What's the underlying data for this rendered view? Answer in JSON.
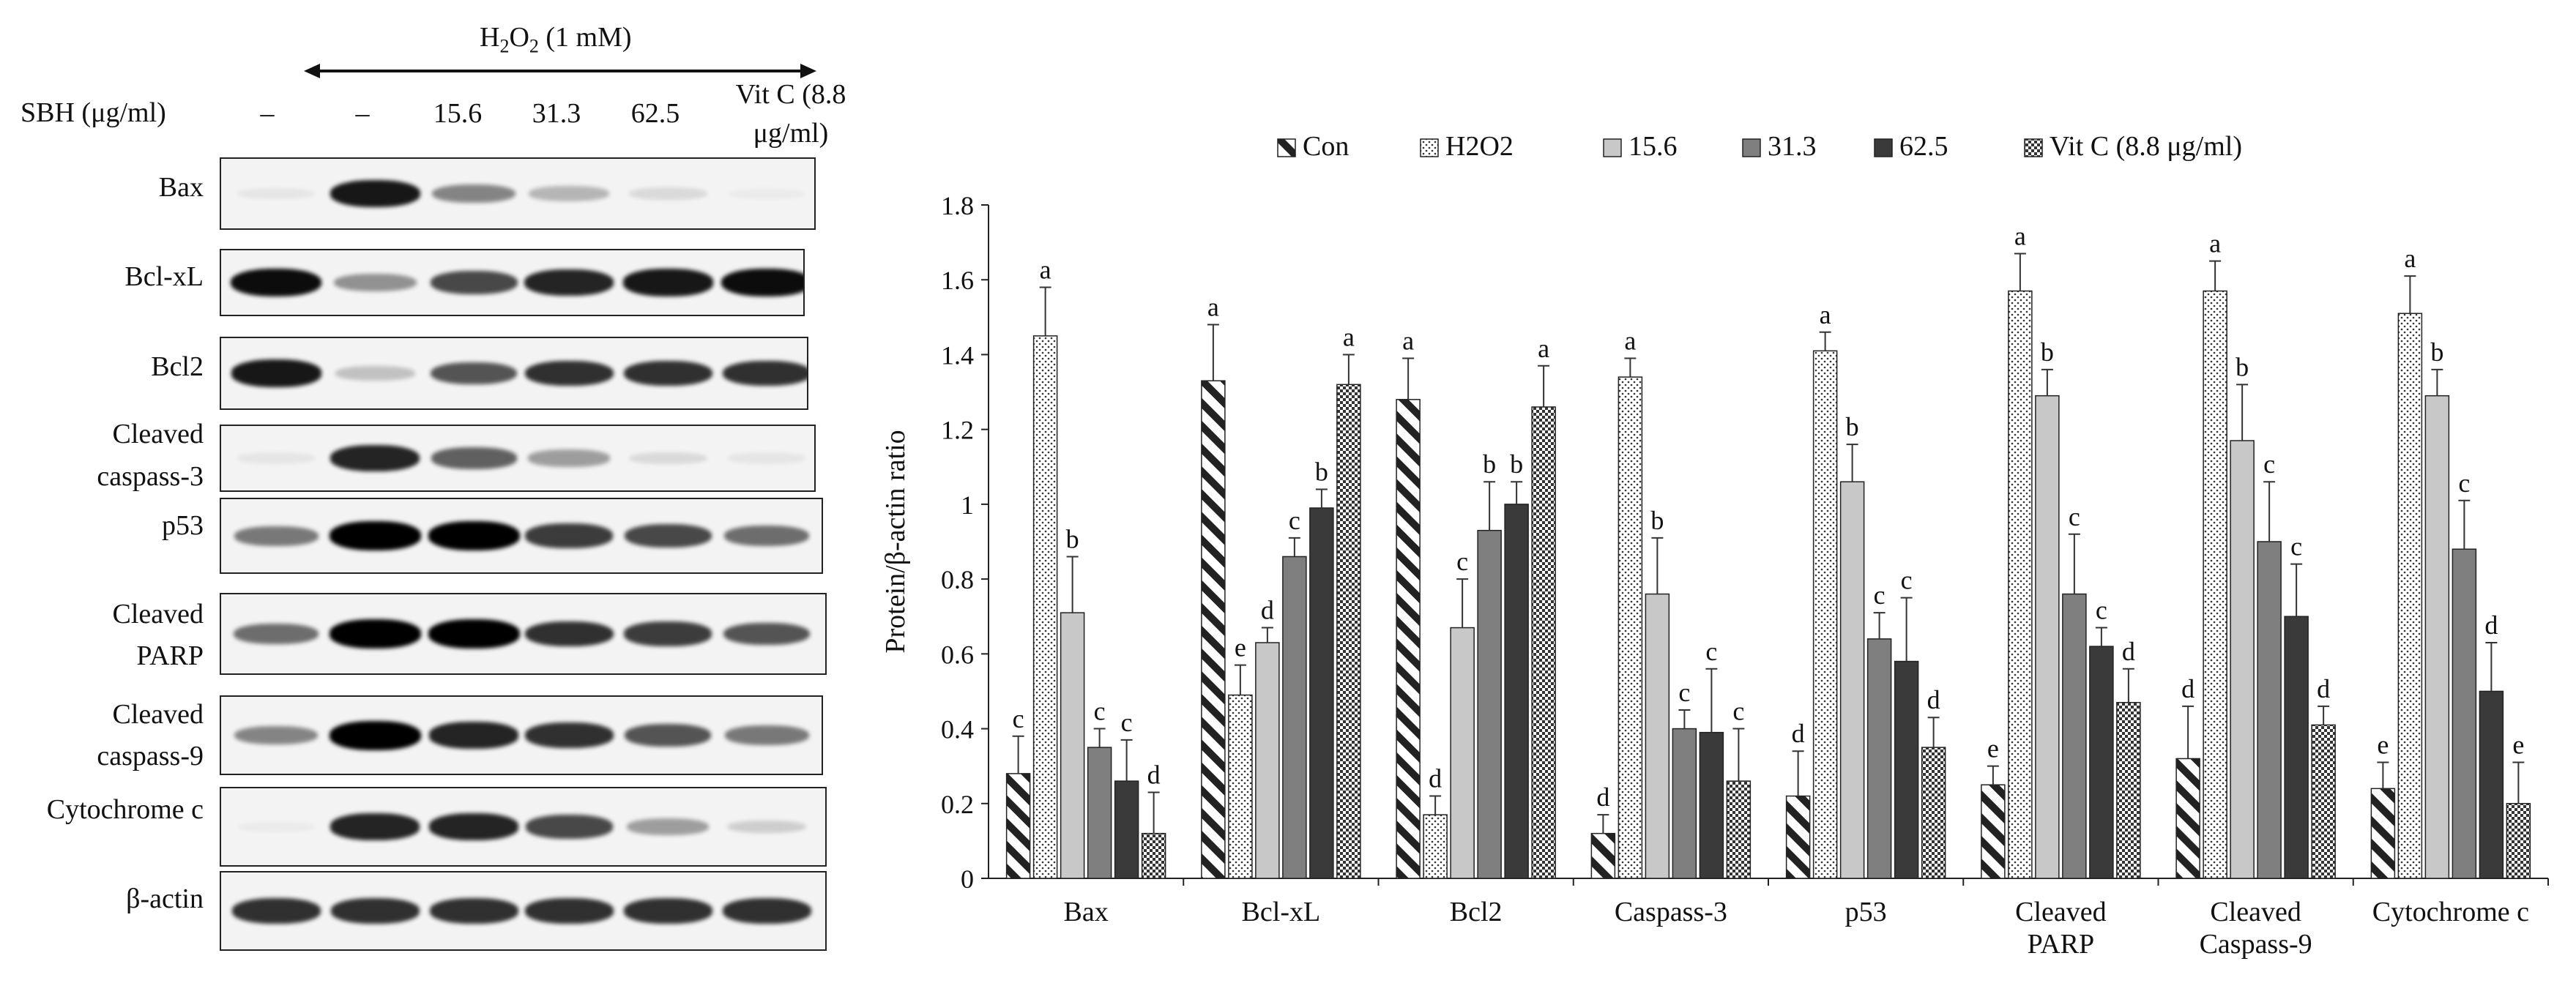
{
  "blot": {
    "treatment_label": "H2O2 (1 mM)",
    "treatment_main": "H",
    "treatment_sub2": "2",
    "treatment_o": "O",
    "treatment_sub2b": "2",
    "treatment_conc": " (1 mM)",
    "sbh_label": "SBH (μg/ml)",
    "lanes": [
      "–",
      "–",
      "15.6",
      "31.3",
      "62.5",
      "Vit C (8.8",
      "μg/ml)"
    ],
    "rows": [
      {
        "label": "Bax",
        "intensity": [
          0.05,
          0.9,
          0.45,
          0.25,
          0.1,
          0.0
        ]
      },
      {
        "label": "Bcl-xL",
        "intensity": [
          0.95,
          0.4,
          0.7,
          0.85,
          0.9,
          0.95
        ]
      },
      {
        "label": "Bcl2",
        "intensity": [
          0.9,
          0.2,
          0.65,
          0.8,
          0.8,
          0.8
        ]
      },
      {
        "label": "Cleaved\ncaspass-3",
        "intensity": [
          0.05,
          0.85,
          0.6,
          0.35,
          0.1,
          0.05
        ]
      },
      {
        "label": "p53",
        "intensity": [
          0.5,
          1.0,
          1.0,
          0.75,
          0.7,
          0.55
        ]
      },
      {
        "label": "Cleaved\nPARP",
        "intensity": [
          0.55,
          1.0,
          1.0,
          0.8,
          0.75,
          0.65
        ]
      },
      {
        "label": "Cleaved\ncaspass-9",
        "intensity": [
          0.45,
          1.0,
          0.85,
          0.8,
          0.65,
          0.5
        ]
      },
      {
        "label": "Cytochrome c",
        "intensity": [
          0.0,
          0.85,
          0.85,
          0.7,
          0.35,
          0.15
        ]
      },
      {
        "label": "β-actin",
        "intensity": [
          0.8,
          0.8,
          0.8,
          0.8,
          0.8,
          0.8
        ]
      }
    ]
  },
  "chart_data": {
    "type": "bar",
    "ylabel": "Protein/β-actin ratio",
    "ylim": [
      0,
      1.8
    ],
    "yticks": [
      "0",
      "0.2",
      "0.4",
      "0.6",
      "0.8",
      "1",
      "1.2",
      "1.4",
      "1.6",
      "1.8"
    ],
    "categories": [
      "Bax",
      "Bcl-xL",
      "Bcl2",
      "Caspass-3",
      "p53",
      "Cleaved\nPARP",
      "Cleaved\nCaspass-9",
      "Cytochrome c"
    ],
    "series": [
      {
        "name": "Con",
        "pattern": "diag",
        "values": [
          0.28,
          1.33,
          1.28,
          0.12,
          0.22,
          0.25,
          0.32,
          0.24
        ],
        "errors": [
          0.1,
          0.15,
          0.11,
          0.05,
          0.12,
          0.05,
          0.14,
          0.07
        ],
        "letters": [
          "c",
          "a",
          "a",
          "d",
          "d",
          "e",
          "d",
          "e"
        ]
      },
      {
        "name": "H2O2",
        "pattern": "dots",
        "values": [
          1.45,
          0.49,
          0.17,
          1.34,
          1.41,
          1.57,
          1.57,
          1.51
        ],
        "errors": [
          0.13,
          0.08,
          0.05,
          0.05,
          0.05,
          0.1,
          0.08,
          0.1
        ],
        "letters": [
          "a",
          "e",
          "d",
          "a",
          "a",
          "a",
          "a",
          "a"
        ]
      },
      {
        "name": "15.6",
        "pattern": "light",
        "values": [
          0.71,
          0.63,
          0.67,
          0.76,
          1.06,
          1.29,
          1.17,
          1.29
        ],
        "errors": [
          0.15,
          0.04,
          0.13,
          0.15,
          0.1,
          0.07,
          0.15,
          0.07
        ],
        "letters": [
          "b",
          "d",
          "c",
          "b",
          "b",
          "b",
          "b",
          "b"
        ]
      },
      {
        "name": "31.3",
        "pattern": "medium",
        "values": [
          0.35,
          0.86,
          0.93,
          0.4,
          0.64,
          0.76,
          0.9,
          0.88
        ],
        "errors": [
          0.05,
          0.05,
          0.13,
          0.05,
          0.07,
          0.16,
          0.16,
          0.13
        ],
        "letters": [
          "c",
          "c",
          "b",
          "c",
          "c",
          "c",
          "c",
          "c"
        ]
      },
      {
        "name": "62.5",
        "pattern": "dark",
        "values": [
          0.26,
          0.99,
          1.0,
          0.39,
          0.58,
          0.62,
          0.7,
          0.5
        ],
        "errors": [
          0.11,
          0.05,
          0.06,
          0.17,
          0.17,
          0.05,
          0.14,
          0.13
        ],
        "letters": [
          "c",
          "b",
          "b",
          "c",
          "c",
          "c",
          "c",
          "d"
        ]
      },
      {
        "name": "Vit C (8.8 μg/ml)",
        "pattern": "checker",
        "values": [
          0.12,
          1.32,
          1.26,
          0.26,
          0.35,
          0.47,
          0.41,
          0.2
        ],
        "errors": [
          0.11,
          0.08,
          0.11,
          0.14,
          0.08,
          0.09,
          0.05,
          0.11
        ],
        "letters": [
          "d",
          "a",
          "a",
          "c",
          "d",
          "d",
          "d",
          "e"
        ]
      }
    ]
  }
}
